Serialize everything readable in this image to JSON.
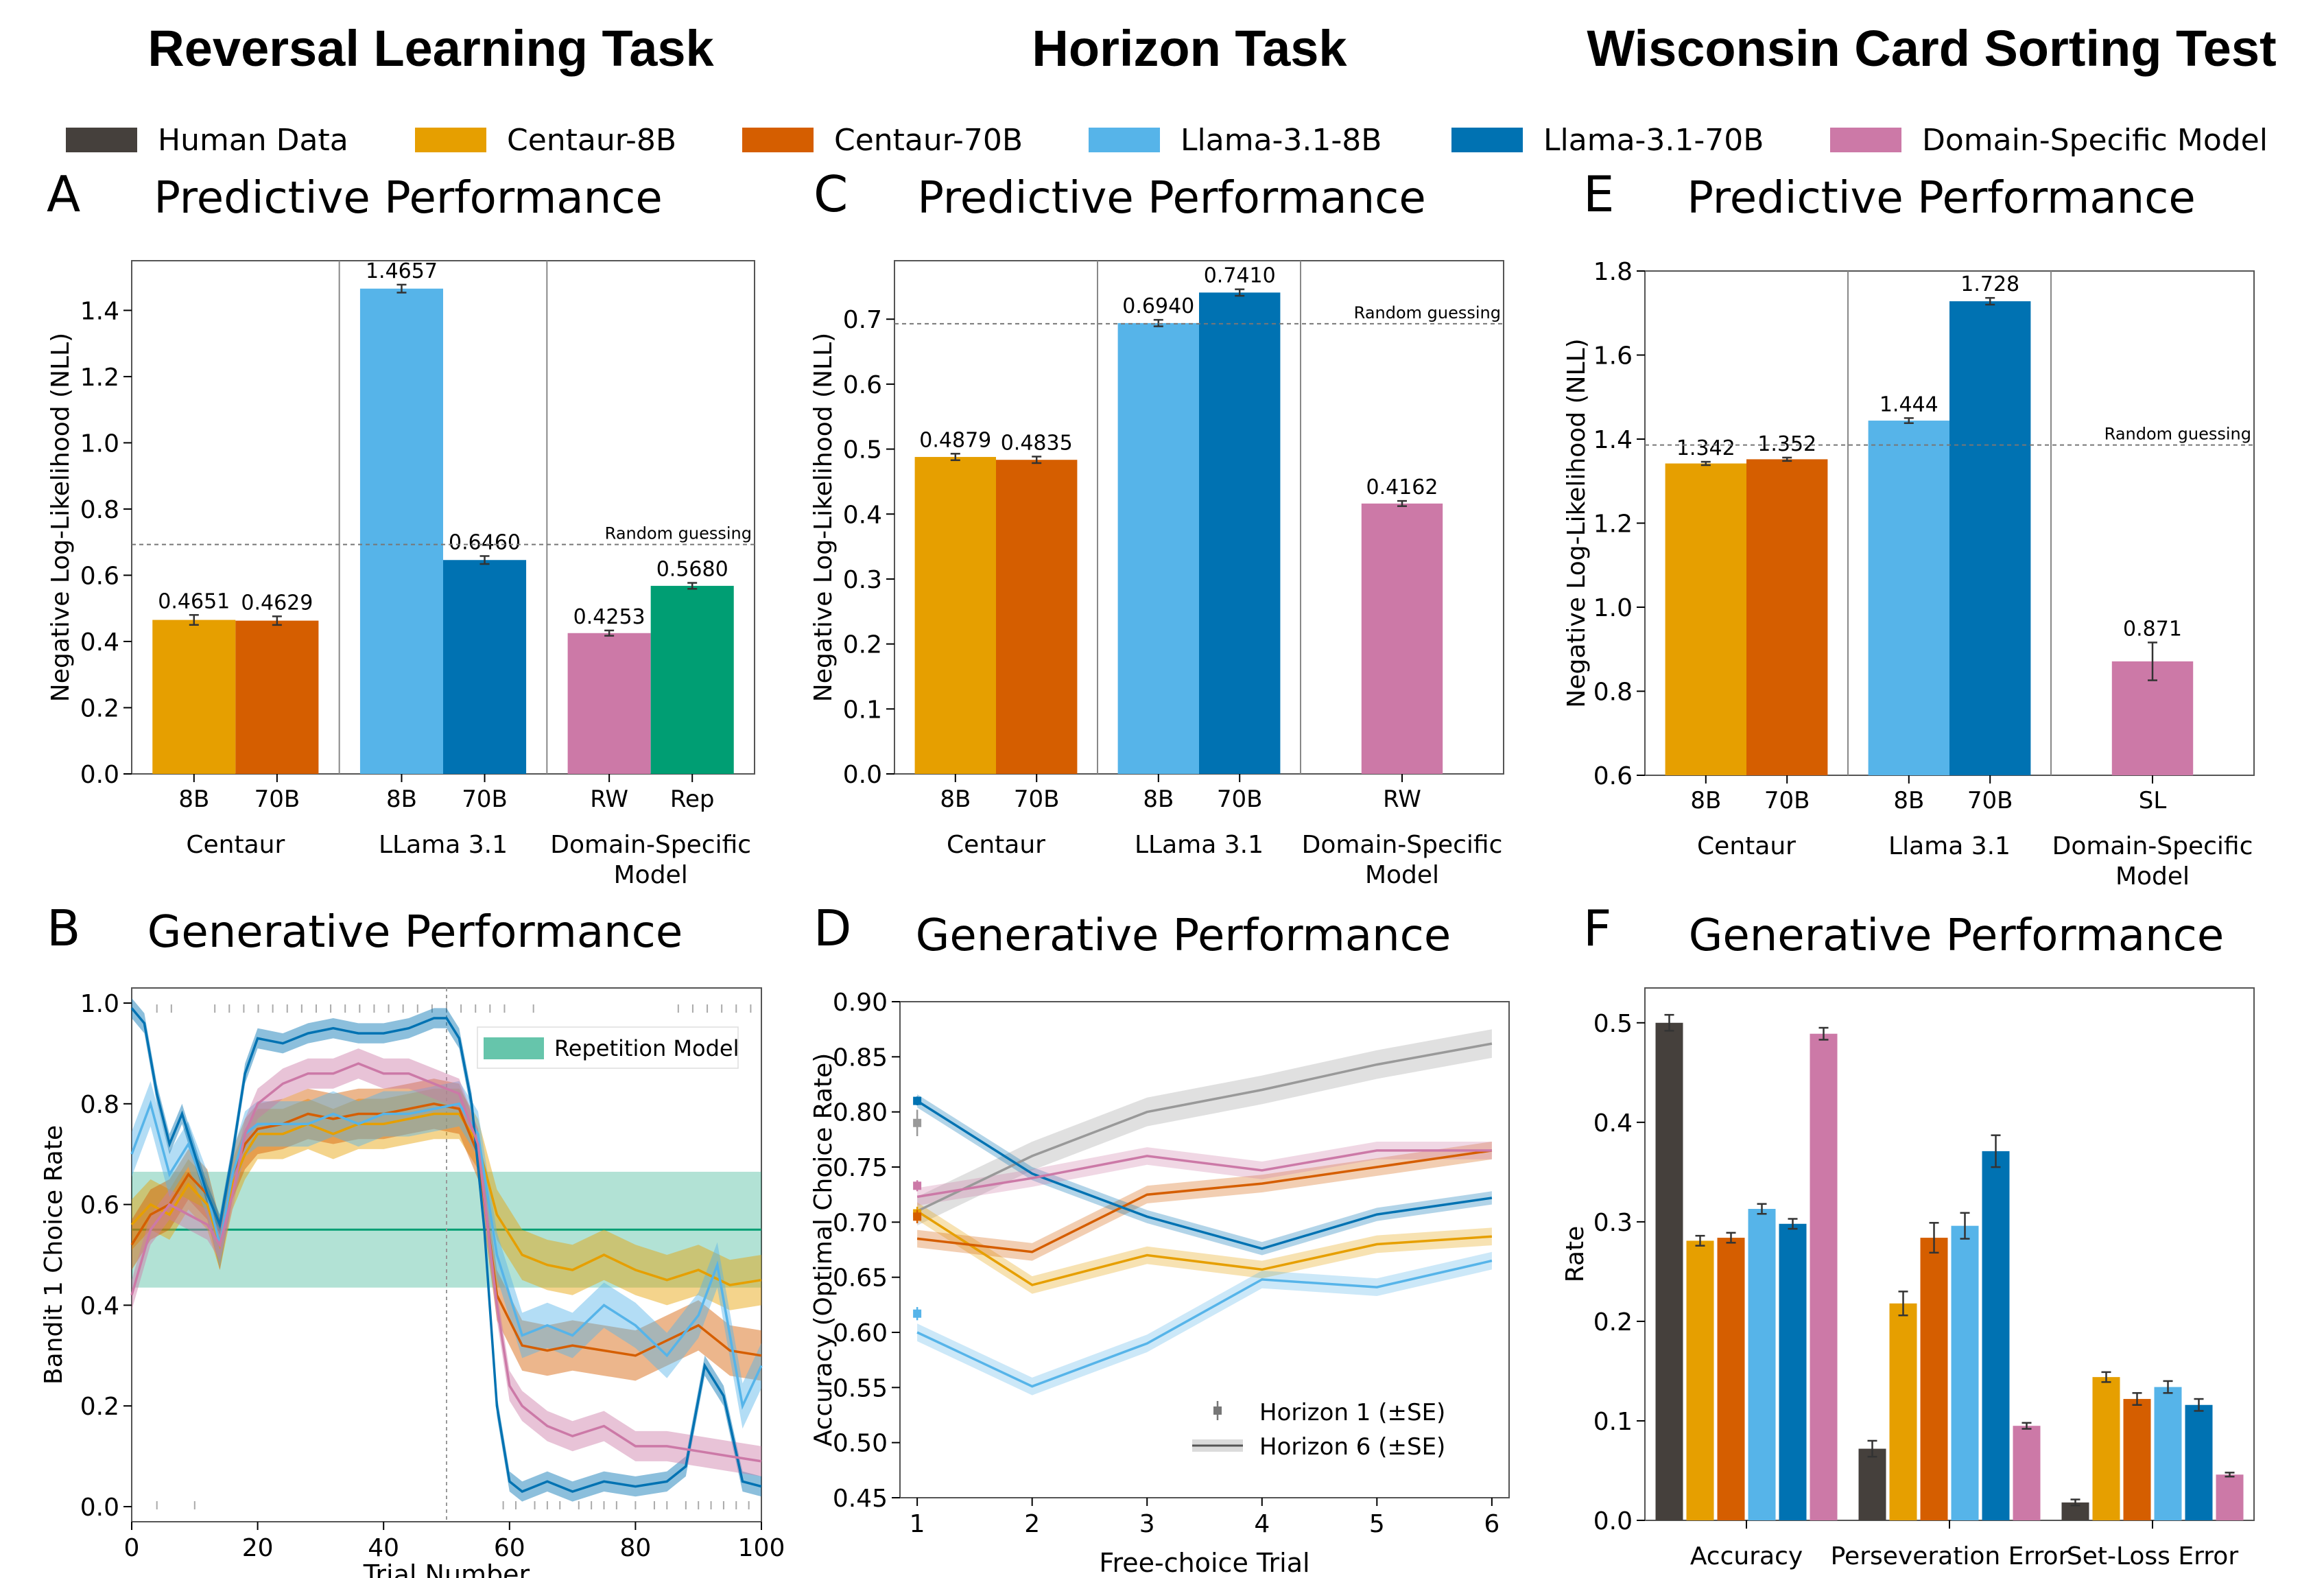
{
  "titles": {
    "reversal": "Reversal Learning Task",
    "horizon": "Horizon Task",
    "wcst": "Wisconsin Card Sorting Test"
  },
  "colors": {
    "human": "#45403C",
    "c8": "#E69F00",
    "c70": "#D55E00",
    "l8": "#56B4E9",
    "l70": "#0072B2",
    "ds": "#CC79A7",
    "rep": "#009E73",
    "gray": "#999999"
  },
  "legend": [
    {
      "label": "Human Data",
      "color": "#45403C"
    },
    {
      "label": "Centaur-8B",
      "color": "#E69F00"
    },
    {
      "label": "Centaur-70B",
      "color": "#D55E00"
    },
    {
      "label": "Llama-3.1-8B",
      "color": "#56B4E9"
    },
    {
      "label": "Llama-3.1-70B",
      "color": "#0072B2"
    },
    {
      "label": "Domain-Specific Model",
      "color": "#CC79A7"
    }
  ],
  "chart_data": [
    {
      "id": "A",
      "letter": "A",
      "type": "bar",
      "title": "Predictive Performance",
      "ylabel": "Negative Log-Likelihood (NLL)",
      "ylim": [
        0,
        1.55
      ],
      "yticks": [
        0.0,
        0.2,
        0.4,
        0.6,
        0.8,
        1.0,
        1.2,
        1.4
      ],
      "ytick_decimals": 1,
      "random_guess": 0.693,
      "random_label": "Random guessing",
      "groups": [
        {
          "name": "Centaur",
          "bars": [
            {
              "label": "8B",
              "value": 0.4651,
              "err": 0.015,
              "text": "0.4651",
              "color": "#E69F00"
            },
            {
              "label": "70B",
              "value": 0.4629,
              "err": 0.013,
              "text": "0.4629",
              "color": "#D55E00"
            }
          ]
        },
        {
          "name": "LLama 3.1",
          "bars": [
            {
              "label": "8B",
              "value": 1.4657,
              "err": 0.012,
              "text": "1.4657",
              "color": "#56B4E9"
            },
            {
              "label": "70B",
              "value": 0.646,
              "err": 0.012,
              "text": "0.6460",
              "color": "#0072B2"
            }
          ]
        },
        {
          "name": "Domain-Specific\nModel",
          "bars": [
            {
              "label": "RW",
              "value": 0.4253,
              "err": 0.008,
              "text": "0.4253",
              "color": "#CC79A7"
            },
            {
              "label": "Rep",
              "value": 0.568,
              "err": 0.009,
              "text": "0.5680",
              "color": "#009E73"
            }
          ]
        }
      ]
    },
    {
      "id": "C",
      "letter": "C",
      "type": "bar",
      "title": "Predictive Performance",
      "ylabel": "Negative Log-Likelihood (NLL)",
      "ylim": [
        0,
        0.79
      ],
      "yticks": [
        0.0,
        0.1,
        0.2,
        0.3,
        0.4,
        0.5,
        0.6,
        0.7
      ],
      "ytick_decimals": 1,
      "random_guess": 0.693,
      "random_label": "Random guessing",
      "groups": [
        {
          "name": "Centaur",
          "bars": [
            {
              "label": "8B",
              "value": 0.4879,
              "err": 0.005,
              "text": "0.4879",
              "color": "#E69F00"
            },
            {
              "label": "70B",
              "value": 0.4835,
              "err": 0.005,
              "text": "0.4835",
              "color": "#D55E00"
            }
          ]
        },
        {
          "name": "LLama 3.1",
          "bars": [
            {
              "label": "8B",
              "value": 0.694,
              "err": 0.005,
              "text": "0.6940",
              "color": "#56B4E9"
            },
            {
              "label": "70B",
              "value": 0.741,
              "err": 0.005,
              "text": "0.7410",
              "color": "#0072B2"
            }
          ]
        },
        {
          "name": "Domain-Specific\nModel",
          "bars": [
            {
              "label": "RW",
              "value": 0.4162,
              "err": 0.004,
              "text": "0.4162",
              "color": "#CC79A7"
            }
          ]
        }
      ]
    },
    {
      "id": "E",
      "letter": "E",
      "type": "bar",
      "title": "Predictive Performance",
      "ylabel": "Negative Log-Likelihood (NLL)",
      "ylim": [
        0.6,
        1.8
      ],
      "yticks": [
        0.6,
        0.8,
        1.0,
        1.2,
        1.4,
        1.6,
        1.8
      ],
      "ytick_decimals": 1,
      "random_guess": 1.386,
      "random_label": "Random guessing",
      "groups": [
        {
          "name": "Centaur",
          "bars": [
            {
              "label": "8B",
              "value": 1.342,
              "err": 0.004,
              "text": "1.342",
              "color": "#E69F00"
            },
            {
              "label": "70B",
              "value": 1.352,
              "err": 0.004,
              "text": "1.352",
              "color": "#D55E00"
            }
          ]
        },
        {
          "name": "Llama 3.1",
          "bars": [
            {
              "label": "8B",
              "value": 1.444,
              "err": 0.006,
              "text": "1.444",
              "color": "#56B4E9"
            },
            {
              "label": "70B",
              "value": 1.728,
              "err": 0.008,
              "text": "1.728",
              "color": "#0072B2"
            }
          ]
        },
        {
          "name": "Domain-Specific\nModel",
          "bars": [
            {
              "label": "SL",
              "value": 0.871,
              "err": 0.045,
              "text": "0.871",
              "color": "#CC79A7"
            }
          ]
        }
      ]
    },
    {
      "id": "B",
      "letter": "B",
      "type": "line",
      "title": "Generative Performance",
      "xlabel": "Trial Number",
      "ylabel": "Bandit 1 Choice Rate",
      "xlim": [
        0,
        100
      ],
      "ylim": [
        -0.03,
        1.03
      ],
      "xticks": [
        0,
        20,
        40,
        60,
        80,
        100
      ],
      "yticks": [
        0.0,
        0.2,
        0.4,
        0.6,
        0.8,
        1.0
      ],
      "ytick_decimals": 1,
      "reversal_trial": 50,
      "band": {
        "label": "Repetition Model",
        "low": 0.435,
        "high": 0.665,
        "mean": 0.55,
        "color": "#009E73"
      },
      "series": [
        {
          "name": "Centaur-8B",
          "color": "#E69F00",
          "x": [
            0,
            3,
            6,
            9,
            12,
            14,
            16,
            18,
            20,
            24,
            28,
            32,
            36,
            40,
            44,
            48,
            52,
            55,
            58,
            62,
            66,
            70,
            75,
            80,
            85,
            90,
            95,
            100
          ],
          "y": [
            0.56,
            0.6,
            0.58,
            0.64,
            0.6,
            0.52,
            0.64,
            0.7,
            0.74,
            0.74,
            0.76,
            0.74,
            0.76,
            0.76,
            0.77,
            0.78,
            0.78,
            0.72,
            0.58,
            0.5,
            0.48,
            0.47,
            0.5,
            0.47,
            0.45,
            0.47,
            0.44,
            0.45
          ],
          "se": 0.05
        },
        {
          "name": "Centaur-70B",
          "color": "#D55E00",
          "x": [
            0,
            3,
            6,
            9,
            12,
            14,
            16,
            18,
            20,
            24,
            28,
            32,
            36,
            40,
            44,
            48,
            52,
            55,
            58,
            62,
            66,
            70,
            75,
            80,
            85,
            90,
            95,
            100
          ],
          "y": [
            0.52,
            0.58,
            0.6,
            0.66,
            0.62,
            0.52,
            0.66,
            0.72,
            0.75,
            0.76,
            0.78,
            0.77,
            0.78,
            0.78,
            0.79,
            0.8,
            0.79,
            0.7,
            0.42,
            0.32,
            0.31,
            0.32,
            0.31,
            0.3,
            0.33,
            0.36,
            0.31,
            0.3
          ],
          "se": 0.05
        },
        {
          "name": "Llama-3.1-8B",
          "color": "#56B4E9",
          "x": [
            0,
            3,
            6,
            9,
            12,
            14,
            16,
            18,
            20,
            24,
            28,
            32,
            36,
            40,
            44,
            48,
            52,
            55,
            58,
            62,
            66,
            70,
            75,
            80,
            85,
            90,
            93,
            97,
            100
          ],
          "y": [
            0.7,
            0.8,
            0.66,
            0.72,
            0.62,
            0.52,
            0.66,
            0.74,
            0.76,
            0.76,
            0.76,
            0.78,
            0.76,
            0.78,
            0.78,
            0.79,
            0.8,
            0.74,
            0.5,
            0.34,
            0.36,
            0.34,
            0.4,
            0.36,
            0.3,
            0.38,
            0.48,
            0.2,
            0.28
          ],
          "se": 0.045
        },
        {
          "name": "Llama-3.1-70B",
          "color": "#0072B2",
          "x": [
            0,
            2,
            4,
            6,
            8,
            10,
            12,
            14,
            16,
            18,
            20,
            24,
            28,
            32,
            36,
            40,
            44,
            48,
            50,
            52,
            54,
            56,
            58,
            60,
            62,
            66,
            70,
            75,
            80,
            85,
            88,
            91,
            94,
            97,
            100
          ],
          "y": [
            0.99,
            0.96,
            0.82,
            0.72,
            0.78,
            0.7,
            0.62,
            0.56,
            0.7,
            0.86,
            0.93,
            0.92,
            0.94,
            0.95,
            0.94,
            0.94,
            0.95,
            0.97,
            0.97,
            0.93,
            0.8,
            0.55,
            0.2,
            0.05,
            0.03,
            0.05,
            0.03,
            0.05,
            0.04,
            0.05,
            0.08,
            0.28,
            0.22,
            0.05,
            0.04
          ],
          "se": 0.02
        },
        {
          "name": "Domain-Specific Model",
          "color": "#CC79A7",
          "x": [
            0,
            3,
            6,
            9,
            12,
            14,
            16,
            18,
            20,
            24,
            28,
            32,
            36,
            40,
            44,
            48,
            52,
            55,
            58,
            60,
            62,
            66,
            70,
            75,
            80,
            85,
            90,
            95,
            100
          ],
          "y": [
            0.42,
            0.55,
            0.6,
            0.58,
            0.56,
            0.52,
            0.62,
            0.74,
            0.8,
            0.84,
            0.86,
            0.86,
            0.88,
            0.86,
            0.86,
            0.84,
            0.82,
            0.72,
            0.4,
            0.24,
            0.2,
            0.16,
            0.14,
            0.16,
            0.12,
            0.12,
            0.11,
            0.1,
            0.09
          ],
          "se": 0.03
        }
      ]
    },
    {
      "id": "D",
      "letter": "D",
      "type": "line",
      "title": "Generative Performance",
      "xlabel": "Free-choice Trial",
      "ylabel": "Accuracy (Optimal Choice Rate)",
      "xlim": [
        0.85,
        6.15
      ],
      "ylim": [
        0.45,
        0.9
      ],
      "xticks": [
        1,
        2,
        3,
        4,
        5,
        6
      ],
      "yticks": [
        0.45,
        0.5,
        0.55,
        0.6,
        0.65,
        0.7,
        0.75,
        0.8,
        0.85,
        0.9
      ],
      "ytick_decimals": 2,
      "legend_entries": [
        "Horizon 1 (±SE)",
        "Horizon 6 (±SE)"
      ],
      "series": [
        {
          "name": "Human Data",
          "color": "#999999",
          "x": [
            1,
            2,
            3,
            4,
            5,
            6
          ],
          "y": [
            0.71,
            0.76,
            0.8,
            0.82,
            0.843,
            0.862
          ],
          "se": 0.013,
          "h1": 0.79,
          "h1se": 0.012
        },
        {
          "name": "Centaur-8B",
          "color": "#E69F00",
          "x": [
            1,
            2,
            3,
            4,
            5,
            6
          ],
          "y": [
            0.71,
            0.643,
            0.67,
            0.657,
            0.68,
            0.687
          ],
          "se": 0.008,
          "h1": 0.708,
          "h1se": 0.006
        },
        {
          "name": "Centaur-70B",
          "color": "#D55E00",
          "x": [
            1,
            2,
            3,
            4,
            5,
            6
          ],
          "y": [
            0.685,
            0.673,
            0.725,
            0.735,
            0.75,
            0.765
          ],
          "se": 0.008,
          "h1": 0.705,
          "h1se": 0.006
        },
        {
          "name": "Llama-3.1-8B",
          "color": "#56B4E9",
          "x": [
            1,
            2,
            3,
            4,
            5,
            6
          ],
          "y": [
            0.6,
            0.551,
            0.59,
            0.648,
            0.641,
            0.665
          ],
          "se": 0.008,
          "h1": 0.617,
          "h1se": 0.006
        },
        {
          "name": "Llama-3.1-70B",
          "color": "#0072B2",
          "x": [
            1,
            2,
            3,
            4,
            5,
            6
          ],
          "y": [
            0.81,
            0.744,
            0.705,
            0.676,
            0.707,
            0.722
          ],
          "se": 0.006,
          "h1": 0.81,
          "h1se": 0.004
        },
        {
          "name": "Domain-Specific Model",
          "color": "#CC79A7",
          "x": [
            1,
            2,
            3,
            4,
            5,
            6
          ],
          "y": [
            0.723,
            0.74,
            0.76,
            0.747,
            0.765,
            0.765
          ],
          "se": 0.008,
          "h1": 0.733,
          "h1se": 0.005
        }
      ]
    },
    {
      "id": "F",
      "letter": "F",
      "type": "bar",
      "title": "Generative Performance",
      "ylabel": "Rate",
      "ylim": [
        0,
        0.535
      ],
      "yticks": [
        0.0,
        0.1,
        0.2,
        0.3,
        0.4,
        0.5
      ],
      "ytick_decimals": 1,
      "categories": [
        "Accuracy",
        "Perseveration Error",
        "Set-Loss Error"
      ],
      "series": [
        {
          "name": "Human Data",
          "color": "#45403C",
          "values": [
            0.5,
            0.072,
            0.018
          ],
          "err": [
            0.008,
            0.008,
            0.003
          ]
        },
        {
          "name": "Centaur-8B",
          "color": "#E69F00",
          "values": [
            0.281,
            0.218,
            0.144
          ],
          "err": [
            0.005,
            0.012,
            0.005
          ]
        },
        {
          "name": "Centaur-70B",
          "color": "#D55E00",
          "values": [
            0.284,
            0.284,
            0.122
          ],
          "err": [
            0.005,
            0.015,
            0.006
          ]
        },
        {
          "name": "Llama-3.1-8B",
          "color": "#56B4E9",
          "values": [
            0.313,
            0.296,
            0.134
          ],
          "err": [
            0.005,
            0.013,
            0.006
          ]
        },
        {
          "name": "Llama-3.1-70B",
          "color": "#0072B2",
          "values": [
            0.298,
            0.371,
            0.116
          ],
          "err": [
            0.005,
            0.016,
            0.006
          ]
        },
        {
          "name": "Domain-Specific Model",
          "color": "#CC79A7",
          "values": [
            0.489,
            0.095,
            0.046
          ],
          "err": [
            0.006,
            0.003,
            0.002
          ]
        }
      ]
    }
  ]
}
